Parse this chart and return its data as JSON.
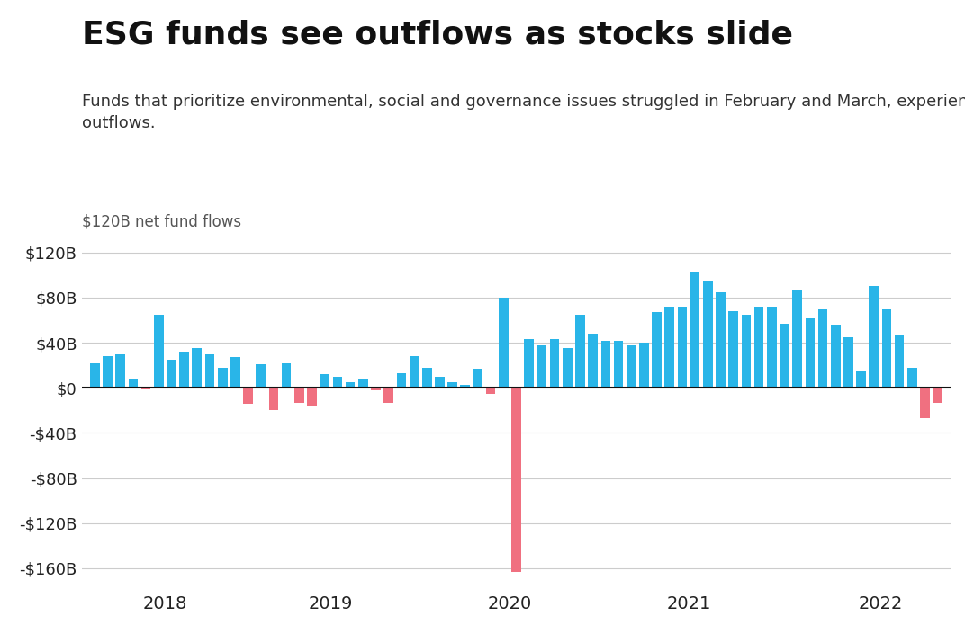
{
  "title": "ESG funds see outflows as stocks slide",
  "subtitle": "Funds that prioritize environmental, social and governance issues struggled in February and March, experiencing net\noutflows.",
  "ylabel": "$120B net fund flows",
  "background_color": "#ffffff",
  "positive_color": "#29b5e8",
  "negative_color": "#f07080",
  "ylim": [
    -175,
    133
  ],
  "yticks": [
    -160,
    -120,
    -80,
    -40,
    0,
    40,
    80,
    120
  ],
  "ytick_labels": [
    "-$160B",
    "-$120B",
    "-$80B",
    "-$40B",
    "$0",
    "$40B",
    "$80B",
    "$120B"
  ],
  "values": [
    22,
    28,
    30,
    8,
    -1,
    65,
    25,
    32,
    35,
    30,
    18,
    27,
    -14,
    21,
    -20,
    22,
    -13,
    -16,
    12,
    10,
    5,
    8,
    -2,
    -13,
    13,
    28,
    18,
    10,
    5,
    3,
    17,
    -5,
    80,
    -163,
    43,
    38,
    43,
    35,
    65,
    48,
    42,
    42,
    38,
    40,
    67,
    72,
    72,
    103,
    94,
    85,
    68,
    65,
    72,
    72,
    57,
    86,
    62,
    70,
    56,
    45,
    15,
    90,
    70,
    47,
    18,
    -27,
    -13
  ],
  "year_labels": [
    "2018",
    "2019",
    "2020",
    "2021",
    "2022"
  ],
  "year_tick_positions": [
    5.5,
    18.5,
    32.5,
    46.5,
    61.5
  ],
  "bar_width": 0.75,
  "title_fontsize": 26,
  "subtitle_fontsize": 13,
  "ylabel_fontsize": 12,
  "ytick_fontsize": 13,
  "year_fontsize": 14,
  "grid_color": "#cccccc",
  "zero_line_color": "#111111",
  "text_color": "#222222",
  "label_color": "#555555"
}
